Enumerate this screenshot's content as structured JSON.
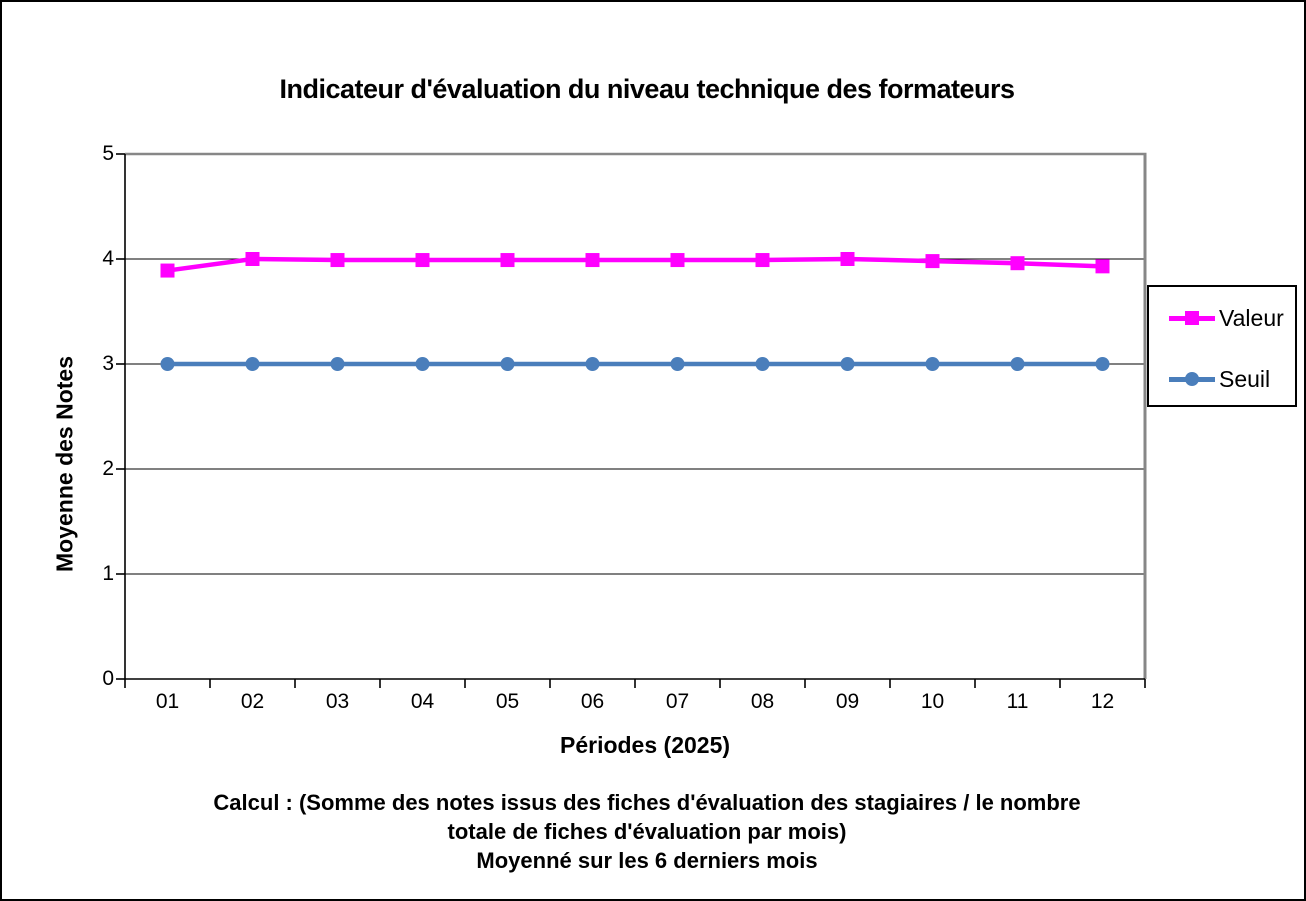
{
  "title": "Indicateur d'évaluation du niveau technique des formateurs",
  "chart_data": {
    "type": "line",
    "title": "Indicateur d'évaluation du niveau technique des formateurs",
    "categories": [
      "01",
      "02",
      "03",
      "04",
      "05",
      "06",
      "07",
      "08",
      "09",
      "10",
      "11",
      "12"
    ],
    "series": [
      {
        "name": "Valeur",
        "color": "#FF00FF",
        "marker": "square",
        "values": [
          3.89,
          4.0,
          3.99,
          3.99,
          3.99,
          3.99,
          3.99,
          3.99,
          4.0,
          3.98,
          3.96,
          3.93
        ]
      },
      {
        "name": "Seuil",
        "color": "#4A7EBB",
        "marker": "circle",
        "values": [
          3,
          3,
          3,
          3,
          3,
          3,
          3,
          3,
          3,
          3,
          3,
          3
        ]
      }
    ],
    "xlabel": "Périodes (2025)",
    "ylabel": "Moyenne des Notes",
    "ylim": [
      0,
      5
    ],
    "yticks": [
      0,
      1,
      2,
      3,
      4,
      5
    ],
    "grid": "horizontal",
    "legend_position": "right",
    "plot_border_color": "#878787",
    "gridline_color": "#000000"
  },
  "footnote": {
    "line1": "Calcul : (Somme des notes issus des fiches d'évaluation des stagiaires / le nombre",
    "line2": "totale de fiches d'évaluation par mois)",
    "line3": "Moyenné sur les 6 derniers mois"
  }
}
